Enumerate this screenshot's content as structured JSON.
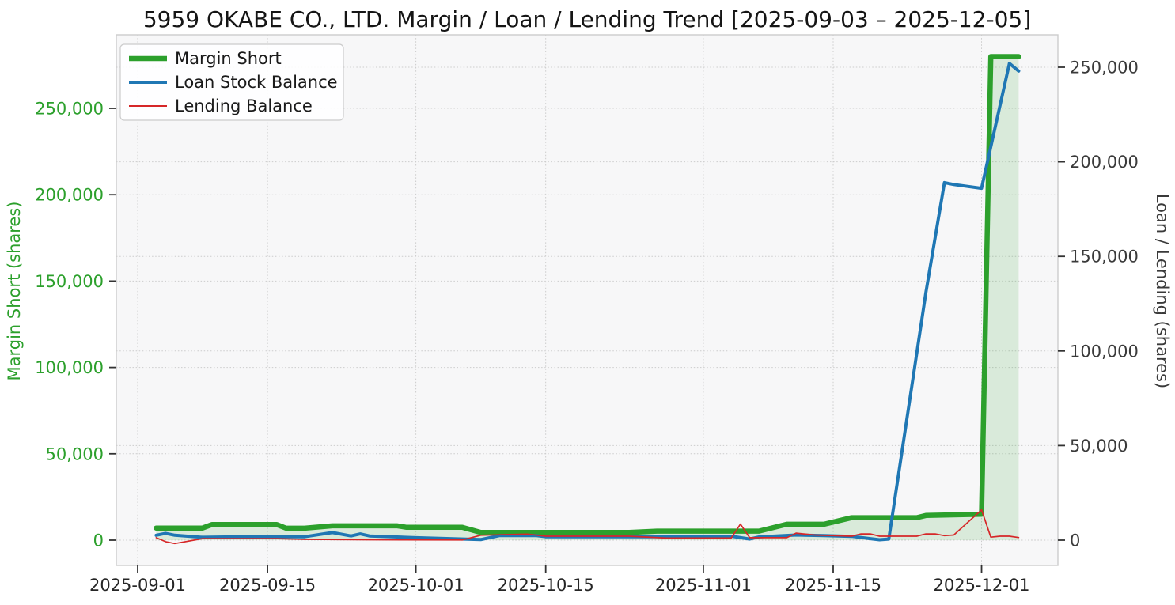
{
  "chart_data": {
    "type": "line",
    "title": "5959 OKABE CO., LTD. Margin / Loan / Lending Trend [2025-09-03 – 2025-12-05]",
    "date_range": [
      "2025-09-03",
      "2025-12-05"
    ],
    "x_ticks": [
      "2025-09-01",
      "2025-09-15",
      "2025-10-01",
      "2025-10-15",
      "2025-11-01",
      "2025-11-15",
      "2025-12-01"
    ],
    "grid": "dotted",
    "legend_position": "upper-left",
    "background": "#f7f7f8",
    "grid_color": "#cccccc",
    "spine_color": "#cccccc",
    "tick_mark_color": "#333333",
    "x_tick_label_color": "#262626",
    "left_axis": {
      "label": "Margin Short (shares)",
      "color": "#2ca02c",
      "ticks": [
        0,
        50000,
        100000,
        150000,
        200000,
        250000
      ],
      "approx_max": 293000
    },
    "right_axis": {
      "label": "Loan / Lending (shares)",
      "color": "#3a3a3a",
      "ticks": [
        0,
        50000,
        100000,
        150000,
        200000,
        250000
      ],
      "approx_max": 264000
    },
    "series": [
      {
        "name": "Margin Short",
        "axis": "left",
        "color": "#2ca02c",
        "line_width": 6.5,
        "fill_under": true,
        "fill_opacity": 0.15,
        "points": [
          [
            "2025-09-03",
            7000
          ],
          [
            "2025-09-08",
            7000
          ],
          [
            "2025-09-09",
            9000
          ],
          [
            "2025-09-16",
            9000
          ],
          [
            "2025-09-17",
            6900
          ],
          [
            "2025-09-19",
            6900
          ],
          [
            "2025-09-22",
            8300
          ],
          [
            "2025-09-29",
            8300
          ],
          [
            "2025-09-30",
            7400
          ],
          [
            "2025-10-06",
            7400
          ],
          [
            "2025-10-08",
            4500
          ],
          [
            "2025-10-24",
            4500
          ],
          [
            "2025-10-27",
            5200
          ],
          [
            "2025-11-07",
            5200
          ],
          [
            "2025-11-10",
            9200
          ],
          [
            "2025-11-14",
            9200
          ],
          [
            "2025-11-17",
            13000
          ],
          [
            "2025-11-24",
            13000
          ],
          [
            "2025-11-25",
            14300
          ],
          [
            "2025-12-01",
            15000
          ],
          [
            "2025-12-02",
            280000
          ],
          [
            "2025-12-05",
            280000
          ]
        ]
      },
      {
        "name": "Loan Stock Balance",
        "axis": "right",
        "color": "#1f77b4",
        "line_width": 4,
        "fill_under": false,
        "points": [
          [
            "2025-09-03",
            2600
          ],
          [
            "2025-09-04",
            3600
          ],
          [
            "2025-09-05",
            2600
          ],
          [
            "2025-09-08",
            1500
          ],
          [
            "2025-09-12",
            1800
          ],
          [
            "2025-09-19",
            1800
          ],
          [
            "2025-09-22",
            4000
          ],
          [
            "2025-09-24",
            2200
          ],
          [
            "2025-09-25",
            3300
          ],
          [
            "2025-09-26",
            2200
          ],
          [
            "2025-10-01",
            1300
          ],
          [
            "2025-10-08",
            300
          ],
          [
            "2025-10-10",
            2400
          ],
          [
            "2025-10-14",
            2400
          ],
          [
            "2025-10-15",
            1800
          ],
          [
            "2025-10-31",
            1800
          ],
          [
            "2025-11-04",
            2100
          ],
          [
            "2025-11-06",
            600
          ],
          [
            "2025-11-07",
            1700
          ],
          [
            "2025-11-11",
            2700
          ],
          [
            "2025-11-14",
            2400
          ],
          [
            "2025-11-17",
            2000
          ],
          [
            "2025-11-19",
            800
          ],
          [
            "2025-11-20",
            200
          ],
          [
            "2025-11-21",
            600
          ],
          [
            "2025-11-25",
            131000
          ],
          [
            "2025-11-27",
            189000
          ],
          [
            "2025-11-28",
            188000
          ],
          [
            "2025-12-01",
            186000
          ],
          [
            "2025-12-04",
            252000
          ],
          [
            "2025-12-05",
            248000
          ]
        ]
      },
      {
        "name": "Lending Balance",
        "axis": "right",
        "color": "#d62728",
        "line_width": 1.7,
        "fill_under": false,
        "points": [
          [
            "2025-09-03",
            1300
          ],
          [
            "2025-09-04",
            -800
          ],
          [
            "2025-09-05",
            -1800
          ],
          [
            "2025-09-08",
            800
          ],
          [
            "2025-09-16",
            800
          ],
          [
            "2025-09-19",
            400
          ],
          [
            "2025-09-26",
            200
          ],
          [
            "2025-10-06",
            100
          ],
          [
            "2025-10-08",
            2600
          ],
          [
            "2025-10-13",
            3200
          ],
          [
            "2025-10-15",
            2100
          ],
          [
            "2025-10-24",
            2100
          ],
          [
            "2025-10-28",
            1100
          ],
          [
            "2025-11-04",
            1100
          ],
          [
            "2025-11-05",
            8500
          ],
          [
            "2025-11-06",
            1300
          ],
          [
            "2025-11-10",
            1300
          ],
          [
            "2025-11-11",
            3700
          ],
          [
            "2025-11-13",
            2700
          ],
          [
            "2025-11-17",
            2100
          ],
          [
            "2025-11-18",
            3300
          ],
          [
            "2025-11-19",
            3300
          ],
          [
            "2025-11-20",
            2100
          ],
          [
            "2025-11-24",
            2100
          ],
          [
            "2025-11-25",
            3300
          ],
          [
            "2025-11-26",
            3300
          ],
          [
            "2025-11-27",
            2400
          ],
          [
            "2025-11-28",
            2700
          ],
          [
            "2025-12-01",
            16000
          ],
          [
            "2025-12-02",
            1600
          ],
          [
            "2025-12-03",
            2100
          ],
          [
            "2025-12-04",
            2100
          ],
          [
            "2025-12-05",
            1400
          ]
        ]
      }
    ]
  }
}
